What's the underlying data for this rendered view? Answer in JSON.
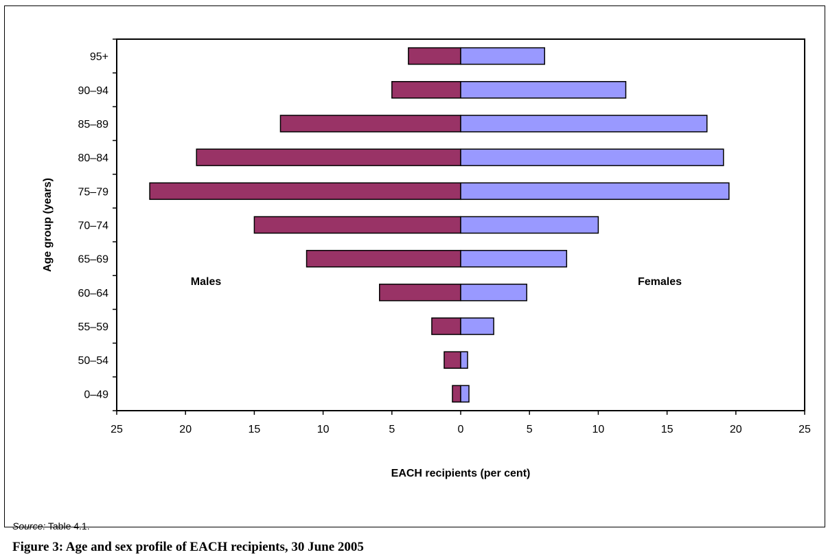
{
  "chart_data": {
    "type": "bar",
    "orientation": "horizontal-population-pyramid",
    "categories": [
      "0–49",
      "50–54",
      "55–59",
      "60–64",
      "65–69",
      "70–74",
      "75–79",
      "80–84",
      "85–89",
      "90–94",
      "95+"
    ],
    "series": [
      {
        "name": "Males",
        "color": "#993366",
        "values": [
          0.6,
          1.2,
          2.1,
          5.9,
          11.2,
          15.0,
          22.6,
          19.2,
          13.1,
          5.0,
          3.8
        ]
      },
      {
        "name": "Females",
        "color": "#9999FF",
        "values": [
          0.6,
          0.5,
          2.4,
          4.8,
          7.7,
          10.0,
          19.5,
          19.1,
          17.9,
          12.0,
          6.1
        ]
      }
    ],
    "xlabel": "EACH recipients (per cent)",
    "ylabel": "Age group (years)",
    "xlim": [
      -25,
      25
    ],
    "xticks": [
      -25,
      -20,
      -15,
      -10,
      -5,
      0,
      5,
      10,
      15,
      20,
      25
    ],
    "xtick_labels": [
      "25",
      "20",
      "15",
      "10",
      "5",
      "0",
      "5",
      "10",
      "15",
      "20",
      "25"
    ],
    "grid": false,
    "legend": "in-plot labels"
  },
  "source": {
    "label": "Source:",
    "text": " Table 4.1."
  },
  "caption": "Figure 3: Age and sex profile of EACH recipients, 30 June 2005"
}
